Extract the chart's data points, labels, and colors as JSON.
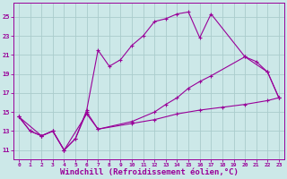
{
  "background_color": "#cce8e8",
  "grid_color": "#aacccc",
  "line_color": "#990099",
  "marker": "+",
  "xlabel": "Windchill (Refroidissement éolien,°C)",
  "xlabel_fontsize": 6.5,
  "ytick_labels": [
    "11",
    "13",
    "15",
    "17",
    "19",
    "21",
    "23",
    "25"
  ],
  "yticks": [
    11,
    13,
    15,
    17,
    19,
    21,
    23,
    25
  ],
  "xticks": [
    0,
    1,
    2,
    3,
    4,
    5,
    6,
    7,
    8,
    9,
    10,
    11,
    12,
    13,
    14,
    15,
    16,
    17,
    18,
    19,
    20,
    21,
    22,
    23
  ],
  "xlim": [
    -0.5,
    23.5
  ],
  "ylim": [
    10.0,
    26.5
  ],
  "series": [
    {
      "x": [
        0,
        1,
        2,
        3,
        4,
        5,
        6,
        7,
        8,
        9,
        10,
        11,
        12,
        13,
        14,
        15,
        16,
        17,
        20,
        22,
        23
      ],
      "y": [
        14.5,
        13.0,
        12.5,
        13.0,
        11.0,
        12.2,
        15.2,
        21.5,
        19.8,
        20.5,
        22.0,
        23.0,
        24.5,
        24.8,
        25.3,
        25.5,
        22.8,
        25.3,
        20.8,
        19.2,
        16.5
      ]
    },
    {
      "x": [
        0,
        1,
        2,
        3,
        4,
        5,
        6,
        7,
        10,
        12,
        13,
        14,
        15,
        16,
        17,
        20,
        21,
        22,
        23
      ],
      "y": [
        14.5,
        13.0,
        12.5,
        13.0,
        11.0,
        12.2,
        15.0,
        13.2,
        14.0,
        15.0,
        15.8,
        16.5,
        17.5,
        18.2,
        18.8,
        20.8,
        20.3,
        19.2,
        16.5
      ]
    },
    {
      "x": [
        0,
        2,
        3,
        4,
        6,
        7,
        10,
        12,
        14,
        16,
        18,
        20,
        22,
        23
      ],
      "y": [
        14.5,
        12.5,
        13.0,
        11.0,
        14.8,
        13.2,
        13.8,
        14.2,
        14.8,
        15.2,
        15.5,
        15.8,
        16.2,
        16.5
      ]
    }
  ]
}
